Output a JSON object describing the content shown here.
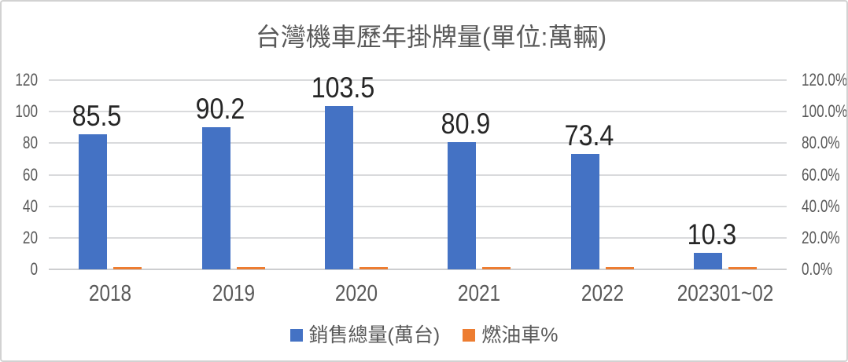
{
  "title": "台灣機車歷年掛牌量(單位:萬輛)",
  "chart_data": {
    "type": "bar",
    "title": "台灣機車歷年掛牌量(單位:萬輛)",
    "categories": [
      "2018",
      "2019",
      "2020",
      "2021",
      "2022",
      "202301~02"
    ],
    "series": [
      {
        "name": "銷售總量(萬台)",
        "axis": "left",
        "color": "#4472C4",
        "values": [
          85.5,
          90.2,
          103.5,
          80.9,
          73.4,
          10.3
        ],
        "data_labels": [
          "85.5",
          "90.2",
          "103.5",
          "80.9",
          "73.4",
          "10.3"
        ]
      },
      {
        "name": "燃油車%",
        "axis": "right",
        "color": "#ED7D31",
        "values": [
          1.5,
          1.5,
          1.5,
          1.5,
          1.5,
          1.5
        ]
      }
    ],
    "left_axis": {
      "min": 0,
      "max": 120,
      "ticks": [
        "0",
        "20",
        "40",
        "60",
        "80",
        "100",
        "120"
      ]
    },
    "right_axis": {
      "min": 0,
      "max": 120,
      "ticks": [
        "0.0%",
        "20.0%",
        "40.0%",
        "60.0%",
        "80.0%",
        "100.0%",
        "120.0%"
      ]
    },
    "grid": true,
    "legend_position": "bottom"
  },
  "colors": {
    "bar_sales": "#4472C4",
    "bar_fuel": "#ED7D31",
    "gridline": "#d9dadc",
    "axis_text": "#595959",
    "data_label_text": "#262626",
    "title_text": "#595959",
    "border": "#d2d2d2"
  }
}
